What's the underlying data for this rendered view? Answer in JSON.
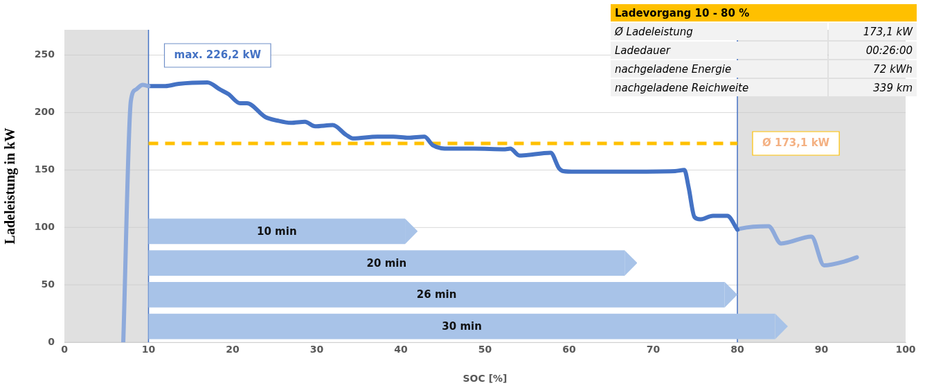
{
  "chart_data": [
    {
      "type": "line",
      "tick_labels": "y",
      "ylabel": "Ladeleistung in kW",
      "xlim": [
        0,
        100
      ],
      "ylim": [
        0,
        272
      ],
      "xticks": [
        0,
        10,
        20,
        30,
        40,
        50,
        60,
        70,
        80,
        90,
        100
      ],
      "yticks": [
        0,
        50,
        100,
        150,
        200,
        250
      ],
      "grid": "y",
      "line_style": "solid",
      "series": [
        {
          "color": "#8eaadb",
          "x": [
            7.0,
            7.9,
            8.5,
            9.3,
            10
          ],
          "values": [
            0,
            210,
            220,
            224,
            223
          ]
        },
        {
          "color": "#4472c4",
          "x": [
            10,
            12,
            13.6,
            17,
            18.5,
            19.5,
            20.9,
            21.7,
            23.9,
            25.3,
            26.9,
            28.6,
            29.8,
            31.9,
            33.5,
            34.3,
            37.2,
            39.1,
            40.9,
            42.8,
            43.8,
            45.8,
            48.7,
            52.4,
            53,
            54.1,
            57.8,
            58.8,
            59.3,
            60.7,
            66.4,
            72.6,
            73.7,
            74.2,
            74.9,
            75.6,
            77.1,
            78.8,
            80
          ],
          "values": [
            223,
            223,
            225,
            226.2,
            220,
            216,
            208,
            208,
            196,
            193,
            191,
            192,
            188,
            189,
            180.5,
            177.5,
            179,
            179,
            178,
            179,
            171.5,
            168.5,
            168.5,
            168,
            168.5,
            162.5,
            165,
            151.5,
            149,
            148.5,
            148.5,
            149,
            150,
            135,
            109,
            107,
            110,
            110,
            98
          ]
        },
        {
          "color": "#8eaadb",
          "x": [
            80,
            80.4,
            83.7,
            85.2,
            88.8,
            90.3,
            92.8,
            94.2
          ],
          "values": [
            98,
            99,
            101,
            86,
            92,
            67,
            70.5,
            74
          ]
        }
      ],
      "ref_lines": [
        {
          "axis": "x",
          "value": 10,
          "color": "#4472c4"
        },
        {
          "axis": "x",
          "value": 80,
          "color": "#4472c4"
        },
        {
          "axis": "y",
          "value": 173.1,
          "label": "Ø 173,1 kW",
          "color": "#ffc000",
          "line_style": "dashed"
        }
      ],
      "bands": [
        {
          "axis": "x",
          "from": 0,
          "to": 10,
          "color": "#e0e0e0"
        },
        {
          "axis": "x",
          "from": 80,
          "to": 100,
          "color": "#e0e0e0"
        }
      ],
      "annotations": [
        "max. 226,2 kW"
      ]
    },
    {
      "type": "bar",
      "orientation": "horizontal",
      "categories": [
        "10 min",
        "20 min",
        "26 min",
        "30 min"
      ],
      "base": [
        10,
        10,
        10,
        10
      ],
      "values": [
        30.5,
        56.6,
        68.5,
        74.5
      ],
      "color": "#a8c3e8",
      "xlabel": "SOC [%]",
      "xlim": [
        0,
        100
      ],
      "xticks": [
        0,
        10,
        20,
        30,
        40,
        50,
        60,
        70,
        80,
        90,
        100
      ],
      "tick_labels": "x"
    },
    {
      "type": "other",
      "title": "Ladevorgang 10 - 80 %",
      "annotations": [
        "Ø Ladeleistung",
        "173,1 kW",
        "Ladedauer",
        "00:26:00",
        "nachgeladene Energie",
        "72 kWh",
        "nachgeladene Reichweite",
        "339 km"
      ]
    }
  ]
}
